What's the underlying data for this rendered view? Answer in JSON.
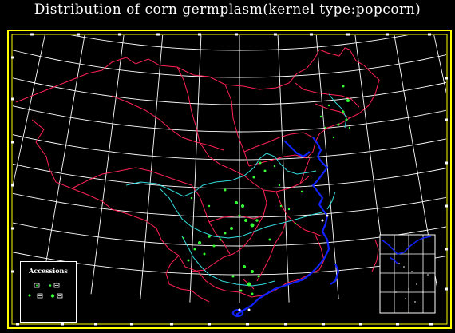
{
  "title": "Distribution  of corn  germplasm(kernel type:popcorn)",
  "legend": {
    "title": "Accessions"
  },
  "colors": {
    "background": "#000000",
    "frame": "#ffff00",
    "graticule": "#ffffff",
    "province_borders": "#ff2255",
    "rivers": "#33dddd",
    "coastline": "#0000ff",
    "accession_points": "#33ff33"
  }
}
